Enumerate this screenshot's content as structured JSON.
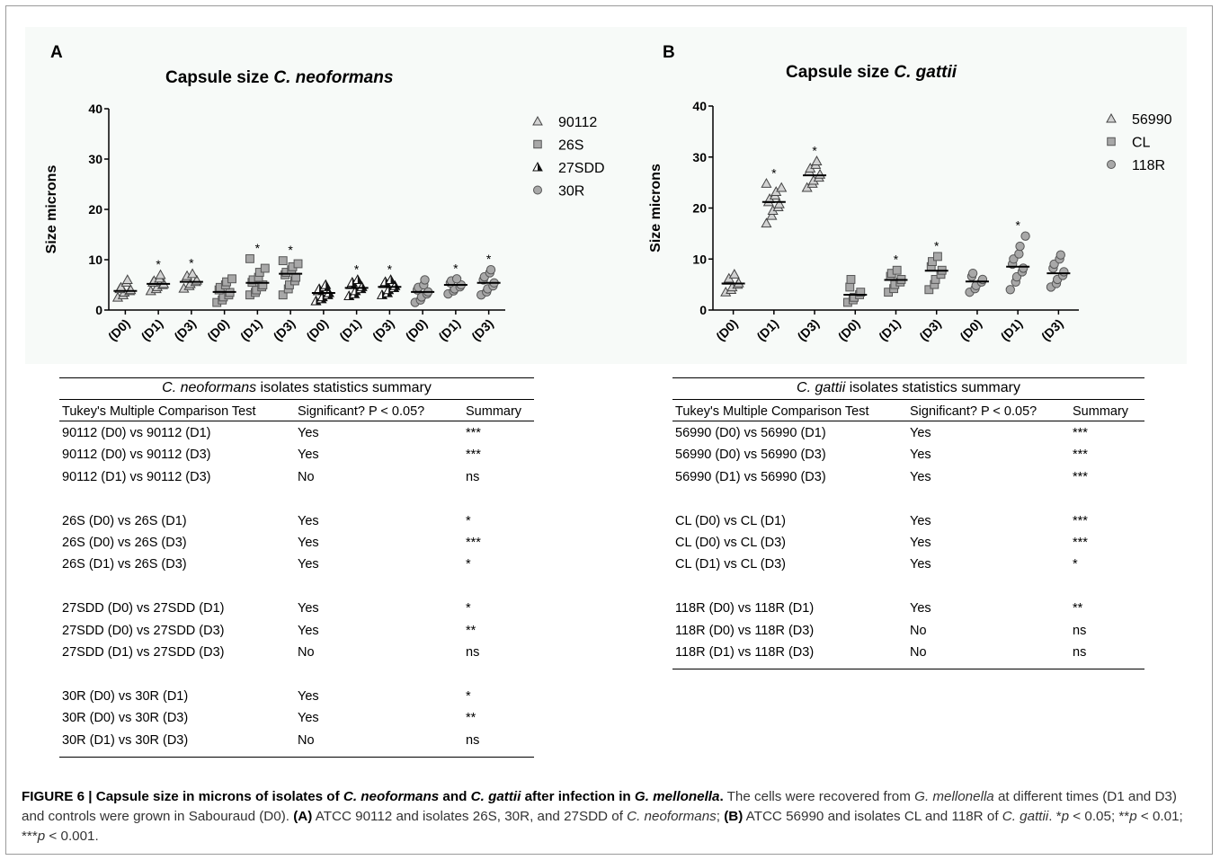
{
  "panel_a": {
    "letter": "A",
    "title_prefix": "Capsule size ",
    "title_italic": "C. neoformans",
    "ylabel": "Size microns",
    "legend": [
      {
        "label": "90112",
        "marker": "triangle-open"
      },
      {
        "label": "26S",
        "marker": "square-gray"
      },
      {
        "label": "27SDD",
        "marker": "triangle-black"
      },
      {
        "label": "30R",
        "marker": "circle-gray"
      }
    ]
  },
  "panel_b": {
    "letter": "B",
    "title_prefix": "Capsule size ",
    "title_italic": "C. gattii",
    "ylabel": "Size microns",
    "legend": [
      {
        "label": "56990",
        "marker": "triangle-open"
      },
      {
        "label": "CL",
        "marker": "square-gray"
      },
      {
        "label": "118R",
        "marker": "circle-gray"
      }
    ]
  },
  "chart_data": [
    {
      "type": "scatter",
      "title": "Capsule size C. neoformans",
      "ylabel": "Size microns",
      "ylim": [
        0,
        40
      ],
      "yticks": [
        0,
        10,
        20,
        30,
        40
      ],
      "categories": [
        "(D0)",
        "(D1)",
        "(D3)",
        "(D0)",
        "(D1)",
        "(D3)",
        "(D0)",
        "(D1)",
        "(D3)",
        "(D0)",
        "(D1)",
        "(D3)"
      ],
      "series": [
        {
          "name": "90112",
          "marker": "triangle-open",
          "means": [
            3.8,
            5.2,
            5.6
          ],
          "points": [
            [
              2.5,
              3,
              3.5,
              3.8,
              4,
              4.2,
              4.5,
              5.5,
              6
            ],
            [
              3.8,
              4.2,
              4.6,
              5,
              5.2,
              5.5,
              5.8,
              6.3,
              7
            ],
            [
              4.3,
              4.8,
              5.2,
              5.6,
              5.9,
              6.3,
              6.8,
              7.2
            ]
          ],
          "significance": [
            "",
            "*",
            "*"
          ]
        },
        {
          "name": "26S",
          "marker": "square-gray",
          "means": [
            3.6,
            5.4,
            7.2
          ],
          "points": [
            [
              1.5,
              2,
              2.6,
              3,
              3.5,
              4,
              4.5,
              5,
              5.6,
              6.2
            ],
            [
              3,
              3.5,
              4,
              4.6,
              5,
              5.5,
              6,
              6.5,
              7.5,
              8.3,
              10.2
            ],
            [
              3,
              4.2,
              5,
              5.8,
              6.5,
              7,
              7.5,
              8,
              8.6,
              9.2,
              9.8
            ]
          ],
          "significance": [
            "",
            "*",
            "*"
          ]
        },
        {
          "name": "27SDD",
          "marker": "triangle-black",
          "means": [
            3.4,
            4.4,
            4.6
          ],
          "points": [
            [
              1.8,
              2.2,
              2.6,
              3,
              3.4,
              3.8,
              4.2,
              4.6,
              5
            ],
            [
              2.8,
              3.2,
              3.8,
              4.2,
              4.6,
              5,
              5.5,
              6
            ],
            [
              3,
              3.4,
              4,
              4.4,
              4.8,
              5.2,
              5.6,
              6
            ]
          ],
          "significance": [
            "",
            "*",
            "*"
          ]
        },
        {
          "name": "30R",
          "marker": "circle-gray",
          "means": [
            3.6,
            5.0,
            5.4
          ],
          "points": [
            [
              1.5,
              2,
              2.6,
              3.2,
              3.6,
              4,
              4.5,
              5,
              6
            ],
            [
              3.2,
              3.8,
              4.2,
              4.6,
              5,
              5.4,
              5.8,
              6.2
            ],
            [
              3,
              3.6,
              4.2,
              4.8,
              5.4,
              6,
              6.6,
              7.4,
              8
            ]
          ],
          "significance": [
            "",
            "*",
            "*"
          ]
        }
      ]
    },
    {
      "type": "scatter",
      "title": "Capsule size C. gattii",
      "ylabel": "Size microns",
      "ylim": [
        0,
        40
      ],
      "yticks": [
        0,
        10,
        20,
        30,
        40
      ],
      "categories": [
        "(D0)",
        "(D1)",
        "(D3)",
        "(D0)",
        "(D1)",
        "(D3)",
        "(D0)",
        "(D1)",
        "(D3)"
      ],
      "series": [
        {
          "name": "56990",
          "marker": "triangle-open",
          "means": [
            5.2,
            21.2,
            26.4
          ],
          "points": [
            [
              3.5,
              4,
              4.5,
              5,
              5.3,
              5.8,
              6.2,
              7
            ],
            [
              17,
              18.5,
              19.5,
              20.2,
              20.8,
              21.2,
              21.8,
              22.5,
              23.2,
              24,
              24.8
            ],
            [
              24,
              24.8,
              25.4,
              26,
              26.6,
              27.2,
              27.8,
              28.5,
              29.2
            ]
          ],
          "significance": [
            "",
            "*",
            "*"
          ]
        },
        {
          "name": "CL",
          "marker": "square-gray",
          "means": [
            3.0,
            5.9,
            7.7
          ],
          "points": [
            [
              1.5,
              2,
              2.5,
              3,
              3.5,
              4.5,
              6
            ],
            [
              3.5,
              4.2,
              5,
              5.5,
              6,
              6.6,
              7.2,
              7.8
            ],
            [
              4,
              5,
              6,
              7,
              7.8,
              8.5,
              9.5,
              10.5
            ]
          ],
          "significance": [
            "",
            "*",
            "*"
          ]
        },
        {
          "name": "118R",
          "marker": "circle-gray",
          "means": [
            5.6,
            8.5,
            7.2
          ],
          "points": [
            [
              3.5,
              4.2,
              4.8,
              5.5,
              6,
              6.6,
              7.2
            ],
            [
              4,
              5.5,
              6.5,
              7.5,
              8.2,
              9,
              10,
              11,
              12.5,
              14.5
            ],
            [
              4.5,
              5.2,
              6,
              6.8,
              7.5,
              8.2,
              9,
              10,
              10.8
            ]
          ],
          "significance": [
            "",
            "*",
            ""
          ]
        }
      ]
    }
  ],
  "table_a": {
    "caption_italic": "C. neoformans",
    "caption_rest": " isolates statistics summary",
    "headers": [
      "Tukey's Multiple Comparison Test",
      "Significant? P < 0.05?",
      "Summary"
    ],
    "rows": [
      [
        "90112 (D0) vs 90112 (D1)",
        "Yes",
        "***"
      ],
      [
        "90112 (D0) vs 90112 (D3)",
        "Yes",
        "***"
      ],
      [
        "90112 (D1) vs 90112 (D3)",
        "No",
        "ns"
      ],
      [
        "",
        "",
        ""
      ],
      [
        "26S (D0) vs 26S (D1)",
        "Yes",
        "*"
      ],
      [
        "26S (D0) vs 26S (D3)",
        "Yes",
        "***"
      ],
      [
        "26S (D1) vs 26S (D3)",
        "Yes",
        "*"
      ],
      [
        "",
        "",
        ""
      ],
      [
        "27SDD (D0) vs 27SDD (D1)",
        "Yes",
        "*"
      ],
      [
        "27SDD (D0) vs 27SDD (D3)",
        "Yes",
        "**"
      ],
      [
        "27SDD (D1) vs 27SDD (D3)",
        "No",
        "ns"
      ],
      [
        "",
        "",
        ""
      ],
      [
        "30R (D0) vs 30R (D1)",
        "Yes",
        "*"
      ],
      [
        "30R (D0) vs 30R (D3)",
        "Yes",
        "**"
      ],
      [
        "30R (D1) vs 30R (D3)",
        "No",
        "ns"
      ]
    ]
  },
  "table_b": {
    "caption_italic": "C. gattii",
    "caption_rest": " isolates statistics summary",
    "headers": [
      "Tukey's Multiple Comparison Test",
      "Significant? P < 0.05?",
      "Summary"
    ],
    "rows": [
      [
        "56990 (D0) vs 56990 (D1)",
        "Yes",
        "***"
      ],
      [
        "56990 (D0) vs 56990 (D3)",
        "Yes",
        "***"
      ],
      [
        "56990 (D1) vs 56990 (D3)",
        "Yes",
        "***"
      ],
      [
        "",
        "",
        ""
      ],
      [
        "CL (D0) vs CL (D1)",
        "Yes",
        "***"
      ],
      [
        "CL (D0) vs CL (D3)",
        "Yes",
        "***"
      ],
      [
        "CL (D1) vs CL (D3)",
        "Yes",
        "*"
      ],
      [
        "",
        "",
        ""
      ],
      [
        "118R (D0) vs 118R (D1)",
        "Yes",
        "**"
      ],
      [
        "118R (D0) vs 118R (D3)",
        "No",
        "ns"
      ],
      [
        "118R (D1) vs 118R (D3)",
        "No",
        "ns"
      ]
    ]
  },
  "caption": {
    "label": "FIGURE 6 | Capsule size in microns of isolates of ",
    "t1": "C. neoformans",
    "t2": " and ",
    "t3": "C. gattii",
    "t4": " after infection in ",
    "t5": "G. mellonella",
    "t6": ".",
    "b1": " The cells were recovered from ",
    "b2": "G. mellonella",
    "b3": " at different times (D1 and D3) and controls were grown in Sabouraud (D0). ",
    "b4": "(A)",
    "b5": " ATCC 90112 and isolates 26S, 30R, and 27SDD of ",
    "b6": "C. neoformans",
    "b7": "; ",
    "b8": "(B)",
    "b9": " ATCC 56990 and isolates CL and 118R of ",
    "b10": "C. gattii",
    "b11": ". *",
    "b12": "p",
    "b13": " < 0.05; **",
    "b14": "p",
    "b15": " < 0.01; ***",
    "b16": "p",
    "b17": " < 0.001."
  }
}
